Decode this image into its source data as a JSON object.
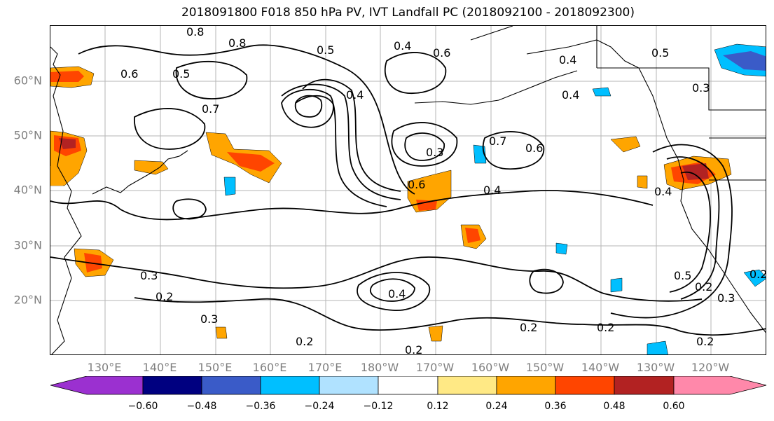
{
  "title": "2018091800 F018 850 hPa PV, IVT Landfall PC (2018092100 - 2018092300)",
  "latitude_labels": [
    "60°N",
    "50°N",
    "40°N",
    "30°N",
    "20°N"
  ],
  "longitude_labels": [
    "130°E",
    "140°E",
    "150°E",
    "160°E",
    "170°E",
    "180°W",
    "170°W",
    "160°W",
    "150°W",
    "140°W",
    "130°W",
    "120°W"
  ],
  "contour_labels": [
    "0.8",
    "0.6",
    "0.5",
    "0.7",
    "0.8",
    "0.5",
    "0.4",
    "0.6",
    "0.4",
    "0.4",
    "0.5",
    "0.3",
    "0.4",
    "0.3",
    "0.6",
    "0.7",
    "0.6",
    "0.4",
    "0.4",
    "0.3",
    "0.2",
    "0.3",
    "0.2",
    "0.4",
    "0.2",
    "0.2",
    "0.2",
    "0.2",
    "0.5",
    "0.2",
    "0.3",
    "0.2"
  ],
  "colorbar": {
    "ticks": [
      "−0.60",
      "−0.48",
      "−0.36",
      "−0.24",
      "−0.12",
      "0.12",
      "0.24",
      "0.36",
      "0.48",
      "0.60"
    ],
    "colors": [
      "#9b30d0",
      "#000080",
      "#3a5bc8",
      "#00bfff",
      "#b0e2ff",
      "#ffffff",
      "#ffe985",
      "#ffa500",
      "#ff4500",
      "#b22222",
      "#ff88aa"
    ]
  },
  "fill_colors": {
    "pos_light": "#ffe985",
    "pos_mid": "#ffa500",
    "pos_strong": "#ff4500",
    "pos_max": "#b22222",
    "neg_light": "#b0e2ff",
    "neg_mid": "#00bfff",
    "neg_strong": "#3a5bc8"
  }
}
